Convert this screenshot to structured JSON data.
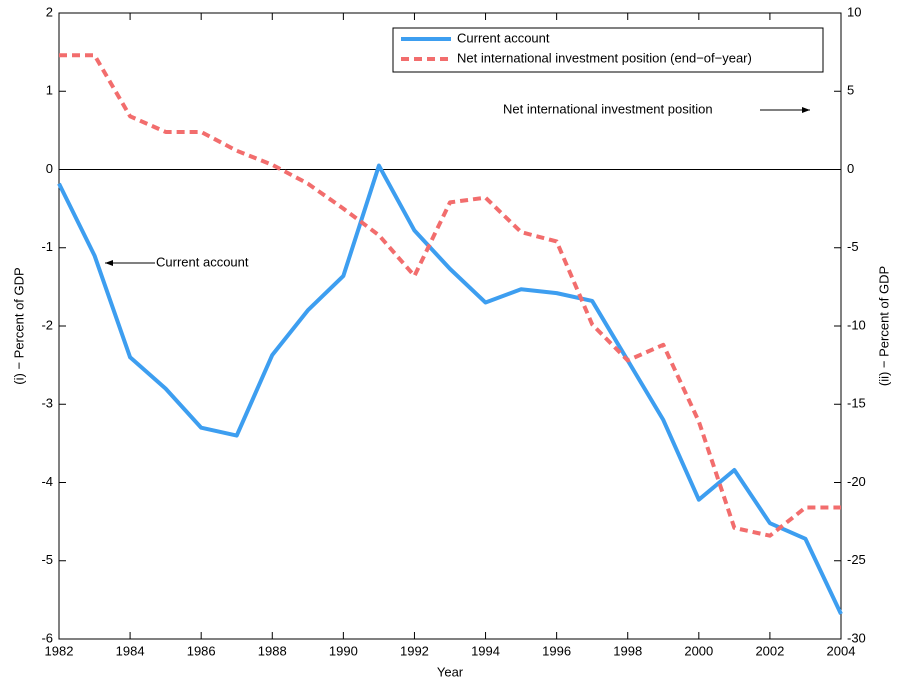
{
  "chart_data": {
    "type": "line",
    "xlabel": "Year",
    "ylabel": "(i) − Percent of GDP",
    "y2label": "(ii) − Percent of GDP",
    "x": [
      1982,
      1983,
      1984,
      1985,
      1986,
      1987,
      1988,
      1989,
      1990,
      1991,
      1992,
      1993,
      1994,
      1995,
      1996,
      1997,
      1998,
      1999,
      2000,
      2001,
      2002,
      2003,
      2004
    ],
    "xlim": [
      1982,
      2004
    ],
    "xticks": [
      1982,
      1984,
      1986,
      1988,
      1990,
      1992,
      1994,
      1996,
      1998,
      2000,
      2002,
      2004
    ],
    "ylim": [
      -6,
      2
    ],
    "yticks": [
      -6,
      -5,
      -4,
      -3,
      -2,
      -1,
      0,
      1,
      2
    ],
    "y2lim": [
      -30,
      10
    ],
    "y2ticks": [
      -30,
      -25,
      -20,
      -15,
      -10,
      -5,
      0,
      5,
      10
    ],
    "zero_line": true,
    "legend": "upper right",
    "series": [
      {
        "name": "Current account",
        "color": "#3d9ef0",
        "linestyle": "solid",
        "values": [
          -0.18,
          -1.1,
          -2.4,
          -2.8,
          -3.3,
          -3.4,
          -2.37,
          -1.8,
          -1.36,
          0.05,
          -0.78,
          -1.27,
          -1.7,
          -1.53,
          -1.58,
          -1.68,
          -2.44,
          -3.2,
          -4.22,
          -3.84,
          -4.52,
          -4.72,
          -5.68
        ]
      },
      {
        "name": "Net international investment position (end−of−year)",
        "color": "#f26d6d",
        "linestyle": "dashed",
        "axis": "y2",
        "values": [
          7.3,
          7.3,
          3.4,
          2.4,
          2.4,
          1.2,
          0.3,
          -0.9,
          -2.5,
          -4.2,
          -6.8,
          -2.1,
          -1.8,
          -4.0,
          -4.6,
          -9.9,
          -12.2,
          -11.2,
          -16.1,
          -22.9,
          -23.4,
          -21.6,
          -21.6
        ]
      }
    ],
    "annotations": [
      {
        "text": "Net international investment position",
        "arrow": "right"
      },
      {
        "text": "Current account",
        "arrow": "left"
      }
    ]
  }
}
